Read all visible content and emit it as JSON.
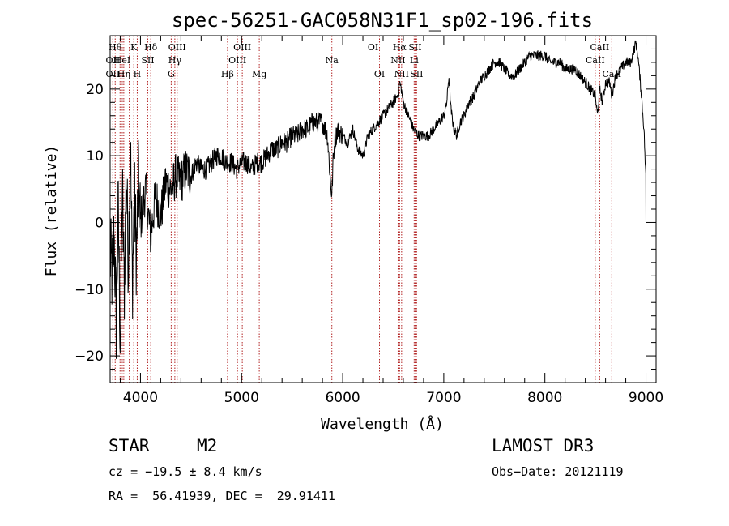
{
  "chart_data": {
    "type": "line",
    "title": "spec-56251-GAC058N31F1_sp02-196.fits",
    "xlabel": "Wavelength (Å)",
    "ylabel": "Flux (relative)",
    "xlim": [
      3700,
      9100
    ],
    "ylim": [
      -24,
      28
    ],
    "xticks": [
      4000,
      5000,
      6000,
      7000,
      8000,
      9000
    ],
    "yticks": [
      -20,
      -10,
      0,
      10,
      20
    ],
    "series": [
      {
        "name": "flux",
        "x": [
          3700,
          3720,
          3740,
          3760,
          3780,
          3800,
          3820,
          3840,
          3860,
          3880,
          3900,
          3920,
          3940,
          3960,
          3980,
          4000,
          4050,
          4100,
          4150,
          4200,
          4250,
          4300,
          4350,
          4400,
          4450,
          4500,
          4550,
          4600,
          4650,
          4700,
          4750,
          4800,
          4850,
          4900,
          4950,
          5000,
          5050,
          5100,
          5150,
          5200,
          5250,
          5300,
          5350,
          5400,
          5450,
          5500,
          5550,
          5600,
          5650,
          5700,
          5750,
          5800,
          5850,
          5880,
          5893,
          5905,
          5920,
          5950,
          6000,
          6050,
          6100,
          6150,
          6200,
          6250,
          6300,
          6350,
          6400,
          6450,
          6500,
          6540,
          6563,
          6580,
          6600,
          6650,
          6700,
          6750,
          6800,
          6850,
          6900,
          6950,
          7000,
          7030,
          7050,
          7070,
          7100,
          7130,
          7160,
          7200,
          7250,
          7300,
          7350,
          7400,
          7450,
          7500,
          7550,
          7600,
          7650,
          7700,
          7750,
          7800,
          7850,
          7900,
          7950,
          8000,
          8050,
          8100,
          8150,
          8200,
          8250,
          8300,
          8350,
          8400,
          8450,
          8498,
          8520,
          8542,
          8570,
          8600,
          8640,
          8662,
          8700,
          8750,
          8800,
          8850,
          8900,
          8920,
          8950,
          8980,
          9000
        ],
        "y": [
          -5,
          -8,
          -2,
          -15,
          2,
          -18,
          5,
          -10,
          8,
          -6,
          12,
          -9,
          4,
          -5,
          6,
          0,
          5,
          -2,
          4,
          1,
          6,
          5,
          7,
          6,
          8,
          7,
          9,
          8,
          8,
          9,
          10,
          10,
          9,
          9,
          8,
          9,
          9,
          8,
          9,
          9,
          10,
          11,
          11,
          12,
          12,
          13,
          13,
          14,
          14,
          15,
          15,
          15,
          13,
          6,
          4,
          9,
          12,
          14,
          13,
          12,
          14,
          11,
          10,
          13,
          14,
          15,
          16,
          17,
          18,
          19,
          21,
          20,
          18,
          16,
          14,
          13,
          13,
          13,
          14,
          15,
          16,
          18,
          22,
          17,
          14,
          13,
          15,
          16,
          18,
          19,
          21,
          22,
          23,
          24,
          24,
          23,
          22,
          22,
          23,
          24,
          25,
          25,
          25,
          25,
          24,
          24,
          24,
          23,
          23,
          23,
          22,
          21,
          20,
          19,
          16,
          20,
          18,
          21,
          21,
          19,
          22,
          23,
          24,
          24,
          27,
          25,
          20,
          14,
          6
        ]
      }
    ],
    "lines": [
      {
        "x": 3750,
        "label": "Hθ",
        "row": 1
      },
      {
        "x": 3727,
        "label": "OII",
        "row": 2
      },
      {
        "x": 3727,
        "label": "OII",
        "row": 3
      },
      {
        "x": 3798,
        "label": "",
        "row": 0
      },
      {
        "x": 3820,
        "label": "HeI",
        "row": 2
      },
      {
        "x": 3835,
        "label": "Hη",
        "row": 3
      },
      {
        "x": 3889,
        "label": "",
        "row": 0
      },
      {
        "x": 3934,
        "label": "K",
        "row": 1
      },
      {
        "x": 3968,
        "label": "H",
        "row": 3
      },
      {
        "x": 4072,
        "label": "SII",
        "row": 2
      },
      {
        "x": 4102,
        "label": "Hδ",
        "row": 1
      },
      {
        "x": 4304,
        "label": "G",
        "row": 3
      },
      {
        "x": 4340,
        "label": "Hγ",
        "row": 2
      },
      {
        "x": 4363,
        "label": "OIII",
        "row": 1
      },
      {
        "x": 4861,
        "label": "Hβ",
        "row": 3
      },
      {
        "x": 4959,
        "label": "OIII",
        "row": 2
      },
      {
        "x": 5007,
        "label": "OIII",
        "row": 1
      },
      {
        "x": 5175,
        "label": "Mg",
        "row": 3
      },
      {
        "x": 5893,
        "label": "Na",
        "row": 2
      },
      {
        "x": 6300,
        "label": "OI",
        "row": 1
      },
      {
        "x": 6364,
        "label": "OI",
        "row": 3
      },
      {
        "x": 6548,
        "label": "NII",
        "row": 2
      },
      {
        "x": 6563,
        "label": "Hα",
        "row": 1
      },
      {
        "x": 6583,
        "label": "NII",
        "row": 3
      },
      {
        "x": 6707,
        "label": "Li",
        "row": 2
      },
      {
        "x": 6716,
        "label": "SII",
        "row": 1
      },
      {
        "x": 6731,
        "label": "SII",
        "row": 3
      },
      {
        "x": 8498,
        "label": "CaII",
        "row": 2
      },
      {
        "x": 8542,
        "label": "CaII",
        "row": 1
      },
      {
        "x": 8662,
        "label": "CaII",
        "row": 3
      }
    ]
  },
  "info": {
    "class_label": "STAR",
    "subclass_label": "M2",
    "survey": "LAMOST DR3",
    "cz": "cz = −19.5 ± 8.4 km/s",
    "obs_date": "Obs−Date: 20121119",
    "coords": "RA =  56.41939, DEC =  29.91411"
  }
}
